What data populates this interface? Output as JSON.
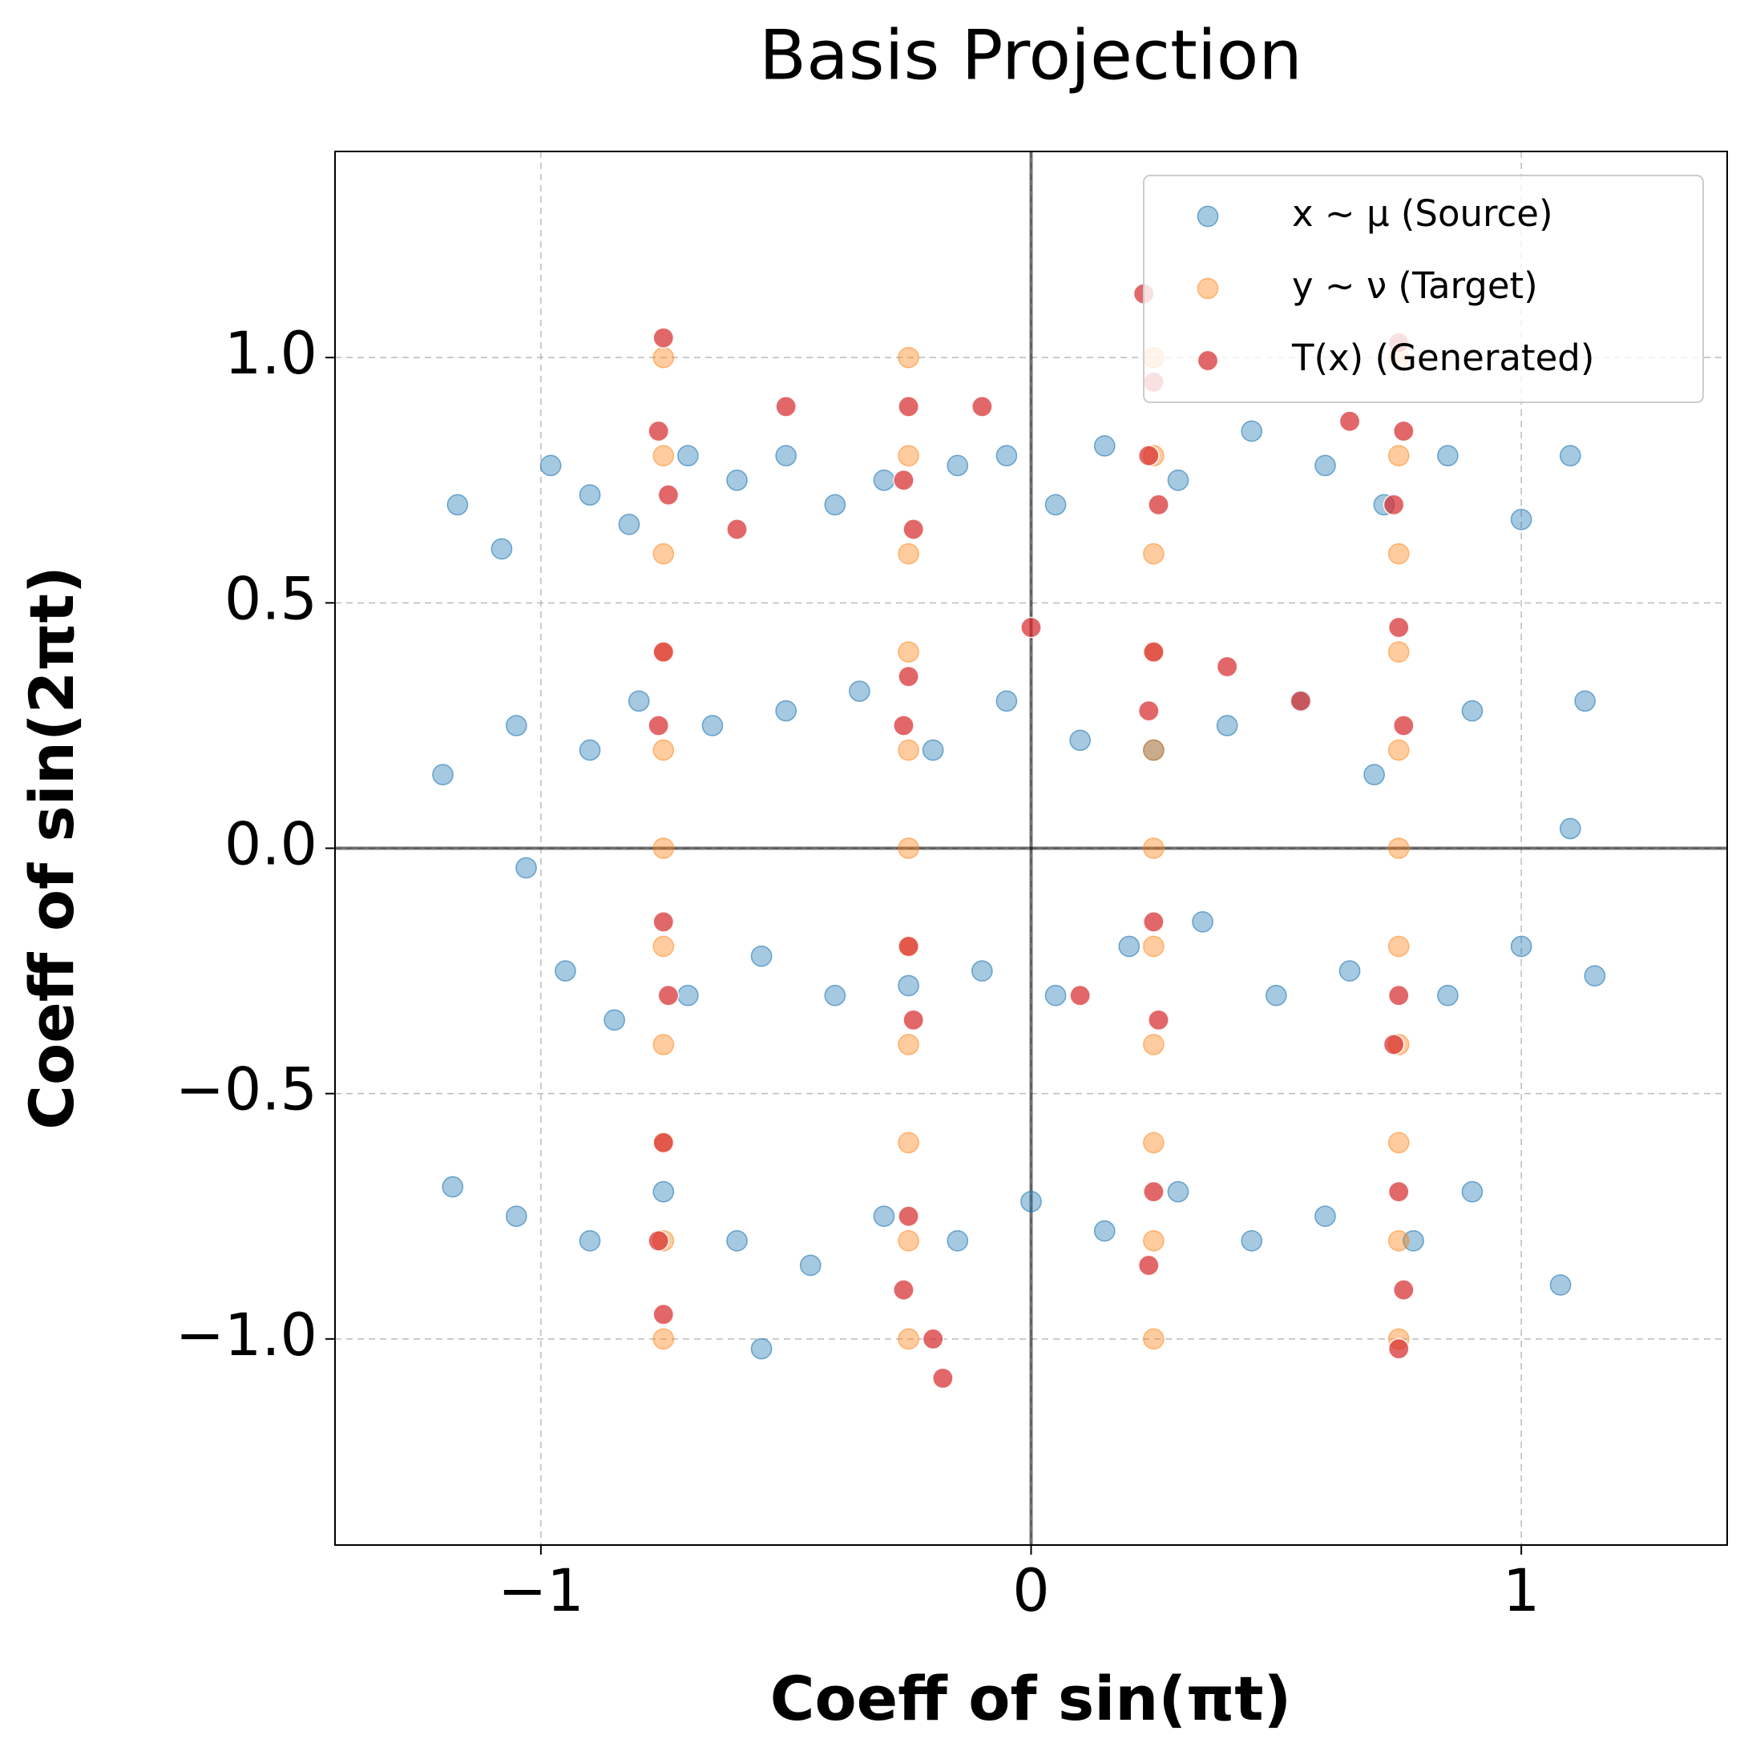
{
  "chart_data": {
    "type": "scatter",
    "title": "Basis Projection",
    "xlabel": "Coeff of sin(πt)",
    "ylabel": "Coeff of sin(2πt)",
    "xlim": [
      -1.42,
      1.42
    ],
    "ylim": [
      -1.42,
      1.42
    ],
    "xticks": [
      {
        "value": -1,
        "label": "−1"
      },
      0,
      1
    ],
    "yticks": [
      {
        "value": -1,
        "label": "−1.0"
      },
      {
        "value": -0.5,
        "label": "−0.5"
      },
      {
        "value": 0,
        "label": "0.0"
      },
      0.5,
      {
        "value": 1,
        "label": "1.0"
      }
    ],
    "grid": true,
    "legend": "upper right",
    "series": [
      {
        "name": "x ∼ μ (Source)",
        "color": "#1f77b4",
        "x": [
          -1.17,
          -1.08,
          -0.98,
          -0.9,
          -0.82,
          -0.7,
          -0.6,
          -0.5,
          -0.4,
          -0.3,
          -0.15,
          -0.05,
          0.05,
          0.15,
          0.3,
          0.45,
          0.6,
          0.72,
          0.85,
          1.0,
          1.1,
          -1.2,
          -1.05,
          -0.9,
          -0.8,
          -0.65,
          -0.5,
          -0.35,
          -0.2,
          -0.05,
          0.1,
          0.25,
          0.4,
          0.55,
          0.7,
          0.9,
          1.13,
          1.1,
          -1.03,
          -0.95,
          -0.85,
          -0.7,
          -0.55,
          -0.4,
          -0.25,
          -0.1,
          0.05,
          0.2,
          0.35,
          0.5,
          0.65,
          0.85,
          1.0,
          1.15,
          -1.18,
          -1.05,
          -0.9,
          -0.75,
          -0.6,
          -0.45,
          -0.3,
          -0.15,
          0.0,
          0.15,
          0.3,
          0.45,
          0.6,
          0.78,
          0.9,
          1.08,
          -0.55
        ],
        "values": [
          0.7,
          0.61,
          0.78,
          0.72,
          0.66,
          0.8,
          0.75,
          0.8,
          0.7,
          0.75,
          0.78,
          0.8,
          0.7,
          0.82,
          0.75,
          0.85,
          0.78,
          0.7,
          0.8,
          0.67,
          0.8,
          0.15,
          0.25,
          0.2,
          0.3,
          0.25,
          0.28,
          0.32,
          0.2,
          0.3,
          0.22,
          0.2,
          0.25,
          0.3,
          0.15,
          0.28,
          0.3,
          0.04,
          -0.04,
          -0.25,
          -0.35,
          -0.3,
          -0.22,
          -0.3,
          -0.28,
          -0.25,
          -0.3,
          -0.2,
          -0.15,
          -0.3,
          -0.25,
          -0.3,
          -0.2,
          -0.26,
          -0.69,
          -0.75,
          -0.8,
          -0.7,
          -0.8,
          -0.85,
          -0.75,
          -0.8,
          -0.72,
          -0.78,
          -0.7,
          -0.8,
          -0.75,
          -0.8,
          -0.7,
          -0.89,
          -1.02
        ]
      },
      {
        "name": "y ∼ ν (Target)",
        "color": "#ff7f0e",
        "x": [
          -0.75,
          -0.75,
          -0.75,
          -0.75,
          -0.75,
          -0.75,
          -0.75,
          -0.75,
          -0.75,
          -0.75,
          -0.75,
          -0.25,
          -0.25,
          -0.25,
          -0.25,
          -0.25,
          -0.25,
          -0.25,
          -0.25,
          -0.25,
          -0.25,
          -0.25,
          0.25,
          0.25,
          0.25,
          0.25,
          0.25,
          0.25,
          0.25,
          0.25,
          0.25,
          0.25,
          0.25,
          0.75,
          0.75,
          0.75,
          0.75,
          0.75,
          0.75,
          0.75,
          0.75,
          0.75,
          0.75,
          0.75
        ],
        "values": [
          -1,
          -0.8,
          -0.6,
          -0.4,
          -0.2,
          0,
          0.2,
          0.4,
          0.6,
          0.8,
          1,
          -1,
          -0.8,
          -0.6,
          -0.4,
          -0.2,
          0,
          0.2,
          0.4,
          0.6,
          0.8,
          1,
          -1,
          -0.8,
          -0.6,
          -0.4,
          -0.2,
          0,
          0.2,
          0.4,
          0.6,
          0.8,
          1,
          -1,
          -0.8,
          -0.6,
          -0.4,
          -0.2,
          0,
          0.2,
          0.4,
          0.6,
          0.8,
          1
        ]
      },
      {
        "name": "T(x) (Generated)",
        "color": "#d62728",
        "x": [
          -0.75,
          -0.76,
          -0.74,
          -0.75,
          -0.76,
          -0.75,
          -0.74,
          -0.75,
          -0.76,
          -0.75,
          -0.25,
          -0.26,
          -0.24,
          -0.25,
          -0.26,
          -0.25,
          -0.24,
          -0.25,
          -0.26,
          0.25,
          0.24,
          0.26,
          0.25,
          0.24,
          0.25,
          0.26,
          0.25,
          0.24,
          0.75,
          0.76,
          0.74,
          0.75,
          0.76,
          0.75,
          0.74,
          0.75,
          0.76,
          0.75,
          -0.6,
          -0.5,
          -0.1,
          0.0,
          0.1,
          0.4,
          0.55,
          0.65,
          -0.2,
          -0.18,
          0.23
        ],
        "values": [
          1.04,
          0.85,
          0.72,
          0.4,
          0.25,
          -0.15,
          -0.3,
          -0.6,
          -0.8,
          -0.95,
          0.9,
          0.75,
          0.65,
          0.35,
          0.25,
          -0.2,
          -0.35,
          -0.75,
          -0.9,
          0.95,
          0.8,
          0.7,
          0.4,
          0.28,
          -0.15,
          -0.35,
          -0.7,
          -0.85,
          1.03,
          0.85,
          0.7,
          0.45,
          0.25,
          -0.3,
          -0.4,
          -0.7,
          -0.9,
          -1.02,
          0.65,
          0.9,
          0.9,
          0.45,
          -0.3,
          0.37,
          0.3,
          0.87,
          -1.0,
          -1.08,
          1.13
        ]
      }
    ]
  }
}
